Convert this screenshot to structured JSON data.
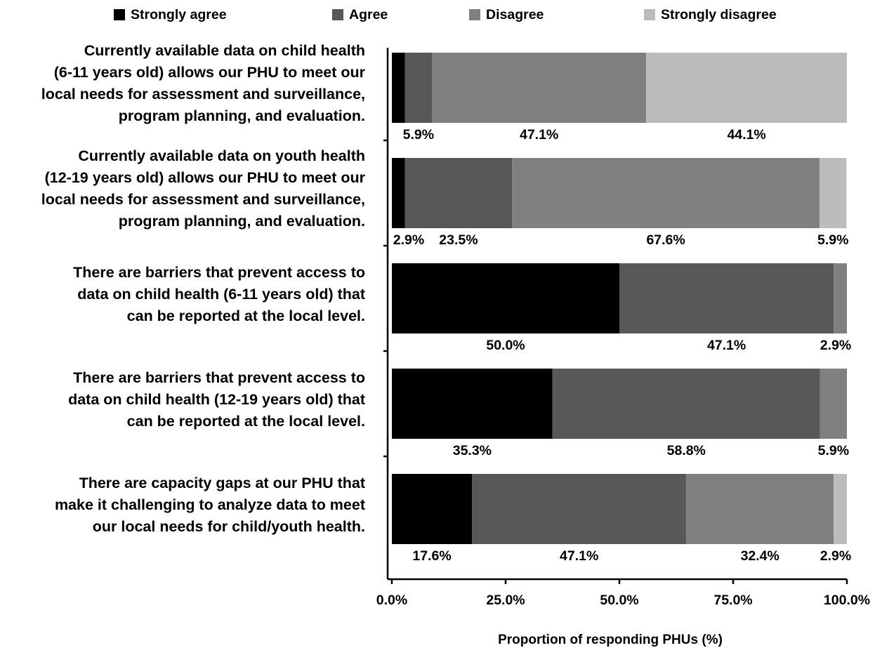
{
  "chart_data": {
    "type": "stacked-bar-horizontal",
    "categories": [
      "Currently available data on child health\n(6-11 years old) allows our PHU to meet our\nlocal needs for assessment and surveillance,\nprogram planning, and evaluation.",
      "Currently available data on youth health\n(12-19 years old) allows our PHU to meet our\nlocal needs for assessment and surveillance,\nprogram planning, and evaluation.",
      "There are barriers that prevent access to\ndata on child health (6-11 years old) that\ncan be reported at the local level.",
      "There are barriers that prevent access to\ndata on child health (12-19 years old) that\ncan be reported at the local level.",
      "There are capacity gaps at our PHU that\nmake it challenging to analyze data to meet\nour local needs for child/youth health."
    ],
    "series": [
      {
        "name": "Strongly agree",
        "color": "#000000",
        "values": [
          2.9,
          2.9,
          50.0,
          35.3,
          17.6
        ],
        "value_labels": [
          null,
          "2.9%",
          "50.0%",
          "35.3%",
          "17.6%"
        ]
      },
      {
        "name": "Agree",
        "color": "#58585a",
        "values": [
          5.9,
          23.5,
          47.1,
          58.8,
          47.1
        ],
        "value_labels": [
          "5.9%",
          "23.5%",
          "47.1%",
          "58.8%",
          "47.1%"
        ]
      },
      {
        "name": "Disagree",
        "color": "#808082",
        "values": [
          47.1,
          67.6,
          2.9,
          5.9,
          32.4
        ],
        "value_labels": [
          "47.1%",
          "67.6%",
          "2.9%",
          "5.9%",
          "32.4%"
        ]
      },
      {
        "name": "Strongly disagree",
        "color": "#bcbcbe",
        "values": [
          44.1,
          5.9,
          0,
          0,
          2.9
        ],
        "value_labels": [
          "44.1%",
          "5.9%",
          null,
          null,
          "2.9%"
        ]
      }
    ],
    "xlim": [
      0,
      100
    ],
    "xticks": [
      {
        "value": 0,
        "label": "0.0%"
      },
      {
        "value": 25,
        "label": "25.0%"
      },
      {
        "value": 50,
        "label": "50.0%"
      },
      {
        "value": 75,
        "label": "75.0%"
      },
      {
        "value": 100,
        "label": "100.0%"
      }
    ],
    "xlabel": "Proportion of responding PHUs (%)",
    "legend": "top"
  }
}
